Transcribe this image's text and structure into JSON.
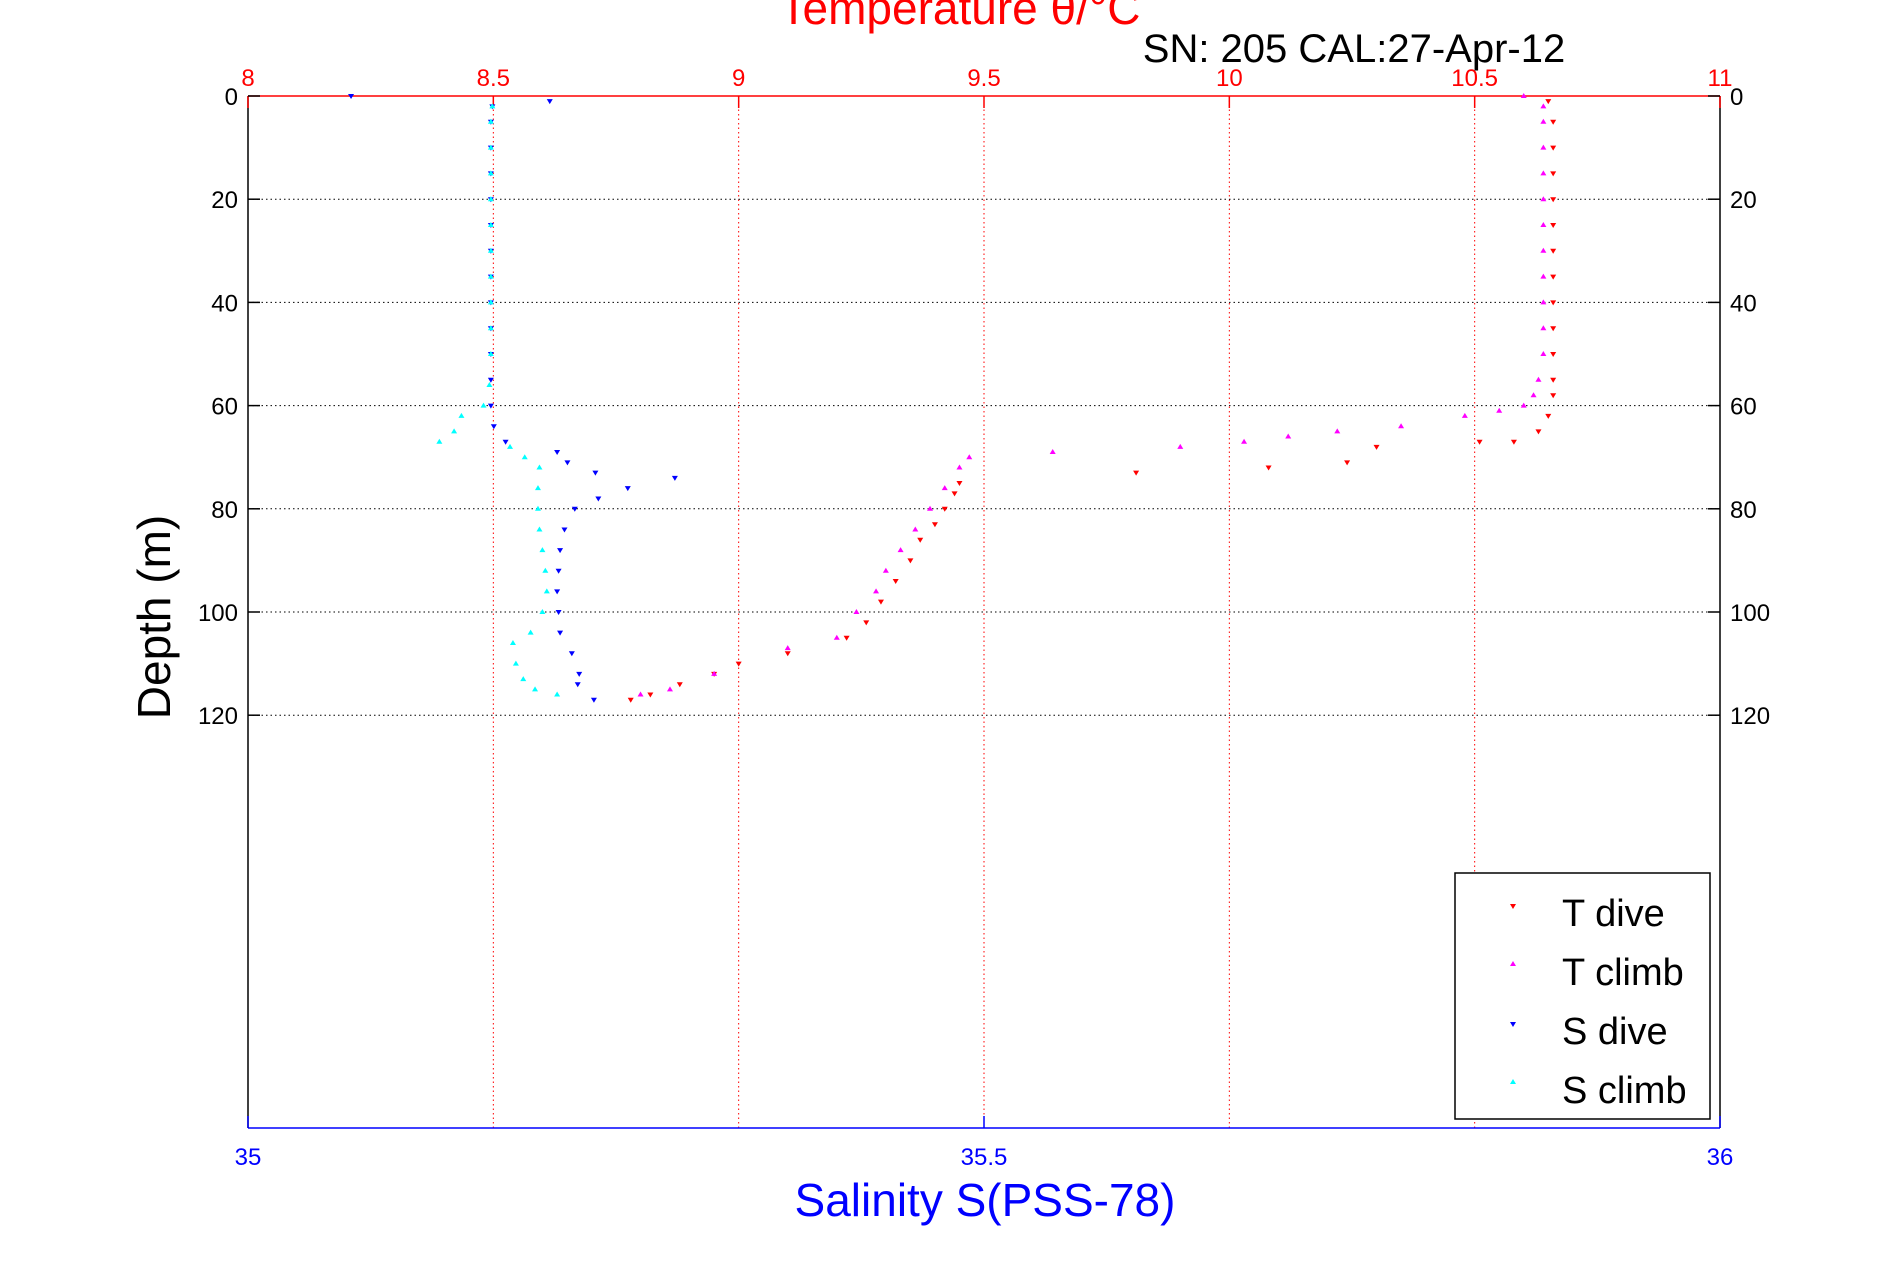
{
  "chart_data": {
    "type": "scatter",
    "title": "Temperature θ/°C",
    "subtitle": "SN: 205  CAL:27-Apr-12",
    "xlabel_bottom": "Salinity S(PSS-78)",
    "xlabel_top": "Temperature θ/°C",
    "ylabel": "Depth (m)",
    "xlim_top": [
      8,
      11
    ],
    "xlim_bottom": [
      35,
      36
    ],
    "ylim": [
      0,
      200
    ],
    "y_inverted": true,
    "yticks": [
      "0",
      "20",
      "40",
      "60",
      "80",
      "100",
      "120"
    ],
    "xticks_top": [
      "8",
      "8.5",
      "9",
      "9.5",
      "10",
      "10.5",
      "11"
    ],
    "xticks_bottom": [
      "35",
      "35.5",
      "36"
    ],
    "grid": true,
    "legend_position": "bottom-right",
    "colors": {
      "temperature_axis": "#ff0000",
      "salinity_axis": "#0000ff",
      "t_dive": "#ff0000",
      "t_climb": "#ff00ff",
      "s_dive": "#0000ff",
      "s_climb": "#00ffff",
      "grid": "#000000",
      "grid_top": "#ff0000"
    },
    "series": [
      {
        "name": "T dive",
        "axis": "top",
        "color": "#ff0000",
        "points": [
          [
            10.65,
            1
          ],
          [
            10.66,
            5
          ],
          [
            10.66,
            10
          ],
          [
            10.66,
            15
          ],
          [
            10.66,
            20
          ],
          [
            10.66,
            25
          ],
          [
            10.66,
            30
          ],
          [
            10.66,
            35
          ],
          [
            10.66,
            40
          ],
          [
            10.66,
            45
          ],
          [
            10.66,
            50
          ],
          [
            10.66,
            55
          ],
          [
            10.66,
            58
          ],
          [
            10.65,
            62
          ],
          [
            10.63,
            65
          ],
          [
            10.58,
            67
          ],
          [
            10.51,
            67
          ],
          [
            10.3,
            68
          ],
          [
            10.24,
            71
          ],
          [
            10.08,
            72
          ],
          [
            9.81,
            73
          ],
          [
            9.45,
            75
          ],
          [
            9.44,
            77
          ],
          [
            9.42,
            80
          ],
          [
            9.4,
            83
          ],
          [
            9.37,
            86
          ],
          [
            9.35,
            90
          ],
          [
            9.32,
            94
          ],
          [
            9.29,
            98
          ],
          [
            9.26,
            102
          ],
          [
            9.22,
            105
          ],
          [
            9.1,
            108
          ],
          [
            9.0,
            110
          ],
          [
            8.95,
            112
          ],
          [
            8.88,
            114
          ],
          [
            8.82,
            116
          ],
          [
            8.78,
            117
          ]
        ]
      },
      {
        "name": "T climb",
        "axis": "top",
        "color": "#ff00ff",
        "points": [
          [
            8.8,
            116
          ],
          [
            8.86,
            115
          ],
          [
            8.95,
            112
          ],
          [
            9.1,
            107
          ],
          [
            9.2,
            105
          ],
          [
            9.24,
            100
          ],
          [
            9.28,
            96
          ],
          [
            9.3,
            92
          ],
          [
            9.33,
            88
          ],
          [
            9.36,
            84
          ],
          [
            9.39,
            80
          ],
          [
            9.42,
            76
          ],
          [
            9.45,
            72
          ],
          [
            9.47,
            70
          ],
          [
            9.64,
            69
          ],
          [
            9.9,
            68
          ],
          [
            10.03,
            67
          ],
          [
            10.12,
            66
          ],
          [
            10.22,
            65
          ],
          [
            10.35,
            64
          ],
          [
            10.48,
            62
          ],
          [
            10.55,
            61
          ],
          [
            10.6,
            60
          ],
          [
            10.62,
            58
          ],
          [
            10.63,
            55
          ],
          [
            10.64,
            50
          ],
          [
            10.64,
            45
          ],
          [
            10.64,
            40
          ],
          [
            10.64,
            35
          ],
          [
            10.64,
            30
          ],
          [
            10.64,
            25
          ],
          [
            10.64,
            20
          ],
          [
            10.64,
            15
          ],
          [
            10.64,
            10
          ],
          [
            10.64,
            5
          ],
          [
            10.64,
            2
          ],
          [
            10.6,
            0
          ]
        ]
      },
      {
        "name": "S dive",
        "axis": "bottom",
        "color": "#0000ff",
        "points": [
          [
            35.07,
            0
          ],
          [
            35.205,
            1
          ],
          [
            35.166,
            2
          ],
          [
            35.165,
            5
          ],
          [
            35.165,
            10
          ],
          [
            35.165,
            15
          ],
          [
            35.165,
            20
          ],
          [
            35.165,
            25
          ],
          [
            35.165,
            30
          ],
          [
            35.165,
            35
          ],
          [
            35.165,
            40
          ],
          [
            35.165,
            45
          ],
          [
            35.165,
            50
          ],
          [
            35.165,
            55
          ],
          [
            35.165,
            60
          ],
          [
            35.167,
            64
          ],
          [
            35.175,
            67
          ],
          [
            35.21,
            69
          ],
          [
            35.217,
            71
          ],
          [
            35.236,
            73
          ],
          [
            35.29,
            74
          ],
          [
            35.258,
            76
          ],
          [
            35.238,
            78
          ],
          [
            35.222,
            80
          ],
          [
            35.215,
            84
          ],
          [
            35.212,
            88
          ],
          [
            35.211,
            92
          ],
          [
            35.21,
            96
          ],
          [
            35.211,
            100
          ],
          [
            35.212,
            104
          ],
          [
            35.22,
            108
          ],
          [
            35.225,
            112
          ],
          [
            35.224,
            114
          ],
          [
            35.235,
            117
          ]
        ]
      },
      {
        "name": "S climb",
        "axis": "bottom",
        "color": "#00ffff",
        "points": [
          [
            35.21,
            116
          ],
          [
            35.195,
            115
          ],
          [
            35.187,
            113
          ],
          [
            35.182,
            110
          ],
          [
            35.18,
            106
          ],
          [
            35.192,
            104
          ],
          [
            35.2,
            100
          ],
          [
            35.203,
            96
          ],
          [
            35.202,
            92
          ],
          [
            35.2,
            88
          ],
          [
            35.198,
            84
          ],
          [
            35.197,
            80
          ],
          [
            35.197,
            76
          ],
          [
            35.198,
            72
          ],
          [
            35.188,
            70
          ],
          [
            35.178,
            68
          ],
          [
            35.13,
            67
          ],
          [
            35.14,
            65
          ],
          [
            35.145,
            62
          ],
          [
            35.16,
            60
          ],
          [
            35.164,
            56
          ],
          [
            35.165,
            50
          ],
          [
            35.165,
            45
          ],
          [
            35.165,
            40
          ],
          [
            35.165,
            35
          ],
          [
            35.165,
            30
          ],
          [
            35.165,
            25
          ],
          [
            35.165,
            20
          ],
          [
            35.165,
            15
          ],
          [
            35.165,
            10
          ],
          [
            35.165,
            5
          ],
          [
            35.166,
            2
          ]
        ]
      }
    ]
  }
}
